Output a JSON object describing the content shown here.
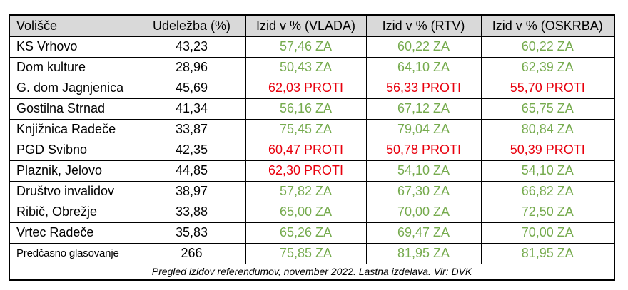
{
  "chart_data": {
    "type": "table",
    "columns": [
      "Volišče",
      "Udeležba (%)",
      "Izid v % (VLADA)",
      "Izid v % (RTV)",
      "Izid v % (OSKRBA)"
    ],
    "rows": [
      [
        "KS Vrhovo",
        "43,23",
        "57,46 ZA",
        "60,22 ZA",
        "60,22 ZA"
      ],
      [
        "Dom kulture",
        "28,96",
        "50,43 ZA",
        "64,10 ZA",
        "62,39 ZA"
      ],
      [
        "G. dom Jagnjenica",
        "45,69",
        "62,03 PROTI",
        "56,33 PROTI",
        "55,70 PROTI"
      ],
      [
        "Gostilna Strnad",
        "41,34",
        "56,16 ZA",
        "67,12 ZA",
        "65,75 ZA"
      ],
      [
        "Knjižnica Radeče",
        "33,87",
        "75,45 ZA",
        "79,04 ZA",
        "80,84 ZA"
      ],
      [
        "PGD Svibno",
        "42,35",
        "60,47 PROTI",
        "50,78 PROTI",
        "50,39 PROTI"
      ],
      [
        "Plaznik, Jelovo",
        "44,85",
        "62,30 PROTI",
        "54,10 ZA",
        "54,10 ZA"
      ],
      [
        "Društvo invalidov",
        "38,97",
        "57,82 ZA",
        "67,30 ZA",
        "66,82 ZA"
      ],
      [
        "Ribič, Obrežje",
        "33,88",
        "65,00 ZA",
        "70,00 ZA",
        "72,50 ZA"
      ],
      [
        "Vrtec Radeče",
        "35,83",
        "65,26 ZA",
        "69,47 ZA",
        "70,00 ZA"
      ],
      [
        "Predčasno glasovanje",
        "266",
        "75,85 ZA",
        "81,95 ZA",
        "81,95 ZA"
      ]
    ],
    "caption": "Pregled izidov referendumov, november 2022. Lastna izdelava. Vir: DVK",
    "legend": {
      "za_label": "ZA",
      "proti_label": "PROTI"
    }
  },
  "colors": {
    "za_green": "#76ab4e",
    "proti_red": "#e8000d",
    "header_bg": "#d9d9d9",
    "border": "#000000"
  }
}
